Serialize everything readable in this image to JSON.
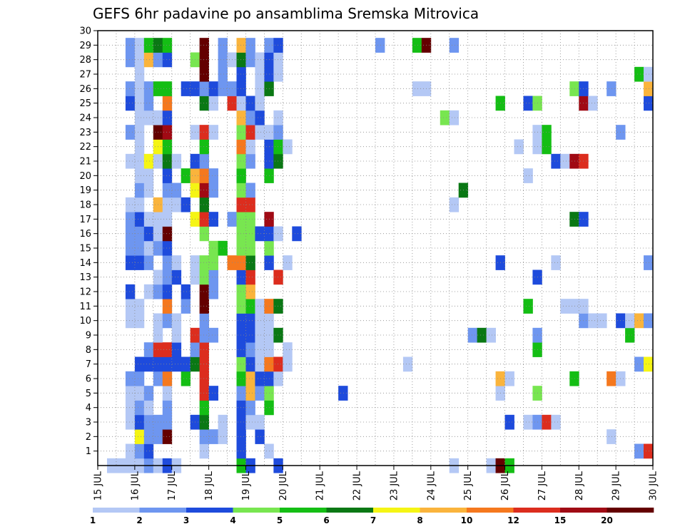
{
  "chart_data": {
    "type": "heatmap",
    "title": "GEFS 6hr padavine po ansamblima Sremska Mitrovica",
    "xlabel": "",
    "ylabel": "",
    "x_tick_labels": [
      "15 JUL",
      "16 JUL",
      "17 JUL",
      "18 JUL",
      "19 JUL",
      "20 JUL",
      "21 JUL",
      "22 JUL",
      "23 JUL",
      "24 JUL",
      "25 JUL",
      "26 JUL",
      "27 JUL",
      "28 JUL",
      "29 JUL",
      "30 JUL"
    ],
    "y_tick_labels": [
      "1",
      "2",
      "3",
      "4",
      "5",
      "6",
      "7",
      "8",
      "9",
      "10",
      "11",
      "12",
      "13",
      "14",
      "15",
      "16",
      "17",
      "18",
      "19",
      "20",
      "21",
      "22",
      "23",
      "24",
      "25",
      "26",
      "27",
      "28",
      "29",
      "30"
    ],
    "x_range_days": [
      0,
      60
    ],
    "steps_per_day": 4,
    "y_range": [
      0,
      30
    ],
    "grid": true,
    "legend": "bottom",
    "colorbar": {
      "colors": [
        "#b4c8f5",
        "#6e96f0",
        "#1e4bdc",
        "#78e650",
        "#14be14",
        "#0a7814",
        "#f5f514",
        "#fab43c",
        "#f5781e",
        "#dc2d1e",
        "#a00a14",
        "#640000"
      ],
      "labels": [
        "1",
        "2",
        "3",
        "4",
        "5",
        "6",
        "7",
        "8",
        "10",
        "12",
        "15",
        "20"
      ]
    },
    "level_key": [
      "1",
      "2",
      "3",
      "4",
      "5",
      "6",
      "7",
      "8",
      "10",
      "12",
      "15",
      "20"
    ],
    "columns": [
      {
        "x": 2,
        "cells": {
          "0": 1
        }
      },
      {
        "x": 3,
        "cells": {
          "0": 1
        }
      },
      {
        "x": 4,
        "cells": {
          "0": 1,
          "1": 1,
          "3": 1,
          "4": 1,
          "5": 1,
          "6": 2,
          "10": 1,
          "11": 1,
          "12": 3,
          "14": 3,
          "15": 2,
          "16": 2,
          "17": 2,
          "18": 1,
          "21": 1,
          "23": 2,
          "25": 3,
          "26": 2,
          "28": 2,
          "29": 2
        }
      },
      {
        "x": 5,
        "cells": {
          "0": 1,
          "1": 2,
          "2": 7,
          "3": 3,
          "4": 2,
          "5": 1,
          "6": 2,
          "7": 3,
          "10": 1,
          "11": 1,
          "14": 3,
          "15": 2,
          "16": 2,
          "17": 3,
          "18": 1,
          "19": 2,
          "20": 1,
          "21": 1,
          "22": 1,
          "23": 1,
          "24": 1,
          "25": 1,
          "26": 1,
          "27": 1,
          "28": 1,
          "29": 1
        }
      },
      {
        "x": 6,
        "cells": {
          "0": 2,
          "1": 3,
          "2": 2,
          "3": 2,
          "4": 1,
          "5": 2,
          "7": 3,
          "8": 2,
          "12": 1,
          "14": 2,
          "15": 1,
          "16": 3,
          "17": 1,
          "19": 1,
          "20": 1,
          "21": 7,
          "24": 1,
          "25": 2,
          "26": 2,
          "28": 8,
          "29": 5
        }
      },
      {
        "x": 7,
        "cells": {
          "0": 1,
          "2": 2,
          "3": 2,
          "6": 2,
          "7": 3,
          "8": 10,
          "9": 1,
          "10": 1,
          "12": 2,
          "13": 1,
          "15": 2,
          "16": 1,
          "17": 1,
          "18": 8,
          "21": 1,
          "22": 7,
          "23": 12,
          "24": 1,
          "26": 5,
          "28": 2,
          "29": 6
        }
      },
      {
        "x": 8,
        "cells": {
          "0": 3,
          "2": 12,
          "3": 2,
          "4": 2,
          "5": 1,
          "6": 9,
          "7": 3,
          "8": 10,
          "10": 2,
          "11": 9,
          "12": 3,
          "13": 2,
          "14": 2,
          "15": 3,
          "16": 12,
          "17": 1,
          "18": 1,
          "19": 2,
          "20": 3,
          "21": 6,
          "22": 5,
          "23": 11,
          "24": 3,
          "25": 9,
          "26": 5,
          "28": 3,
          "29": 5
        }
      },
      {
        "x": 9,
        "cells": {
          "0": 1,
          "7": 3,
          "8": 3,
          "9": 1,
          "10": 1,
          "13": 3,
          "14": 1,
          "18": 1,
          "19": 2,
          "21": 1
        }
      },
      {
        "x": 10,
        "cells": {
          "6": 5,
          "7": 3,
          "11": 2,
          "12": 3,
          "18": 3,
          "20": 5,
          "26": 3
        }
      },
      {
        "x": 11,
        "cells": {
          "3": 3,
          "7": 6,
          "8": 2,
          "9": 10,
          "13": 1,
          "14": 1,
          "17": 7,
          "19": 7,
          "20": 8,
          "21": 3,
          "23": 1,
          "26": 3,
          "28": 4
        }
      },
      {
        "x": 12,
        "cells": {
          "1": 1,
          "2": 2,
          "3": 6,
          "4": 5,
          "5": 10,
          "6": 10,
          "7": 10,
          "8": 10,
          "9": 2,
          "10": 2,
          "11": 12,
          "12": 12,
          "13": 4,
          "14": 4,
          "16": 4,
          "17": 10,
          "18": 6,
          "19": 11,
          "20": 9,
          "21": 2,
          "22": 5,
          "23": 10,
          "25": 6,
          "26": 2,
          "27": 12,
          "28": 12,
          "29": 12
        }
      },
      {
        "x": 13,
        "cells": {
          "2": 2,
          "5": 3,
          "9": 2,
          "12": 2,
          "13": 2,
          "14": 4,
          "15": 4,
          "17": 3,
          "19": 2,
          "20": 2,
          "23": 1,
          "25": 1,
          "26": 3
        }
      },
      {
        "x": 14,
        "cells": {
          "2": 1,
          "3": 1,
          "15": 5,
          "26": 2,
          "27": 2,
          "28": 2,
          "29": 2
        }
      },
      {
        "x": 15,
        "cells": {
          "14": 9,
          "17": 2,
          "25": 10,
          "26": 2,
          "28": 1
        }
      },
      {
        "x": 16,
        "cells": {
          "0": 5,
          "1": 3,
          "2": 3,
          "3": 3,
          "4": 3,
          "5": 2,
          "6": 5,
          "7": 4,
          "8": 3,
          "9": 3,
          "10": 3,
          "11": 4,
          "12": 4,
          "13": 3,
          "14": 9,
          "15": 4,
          "16": 4,
          "17": 4,
          "18": 10,
          "19": 4,
          "20": 5,
          "21": 4,
          "22": 9,
          "23": 4,
          "24": 8,
          "25": 1,
          "26": 3,
          "27": 3,
          "28": 6,
          "29": 8
        }
      },
      {
        "x": 17,
        "cells": {
          "0": 3,
          "3": 1,
          "4": 2,
          "5": 8,
          "6": 8,
          "7": 3,
          "8": 2,
          "9": 3,
          "10": 3,
          "11": 5,
          "12": 8,
          "13": 10,
          "14": 6,
          "15": 4,
          "16": 4,
          "17": 4,
          "18": 10,
          "19": 2,
          "21": 2,
          "22": 1,
          "23": 10,
          "24": 2,
          "25": 3,
          "28": 2,
          "29": 2
        }
      },
      {
        "x": 18,
        "cells": {
          "2": 3,
          "3": 1,
          "5": 2,
          "6": 3,
          "7": 1,
          "8": 1,
          "9": 1,
          "10": 1,
          "11": 1,
          "16": 3,
          "23": 1,
          "24": 3,
          "25": 1,
          "26": 1,
          "27": 1,
          "28": 1
        }
      },
      {
        "x": 19,
        "cells": {
          "1": 1,
          "4": 5,
          "5": 4,
          "6": 3,
          "7": 9,
          "8": 1,
          "9": 1,
          "10": 1,
          "11": 9,
          "14": 3,
          "15": 4,
          "16": 3,
          "17": 11,
          "20": 5,
          "21": 3,
          "22": 3,
          "23": 1,
          "26": 6,
          "27": 3,
          "28": 3,
          "29": 2
        }
      },
      {
        "x": 20,
        "cells": {
          "0": 3,
          "6": 1,
          "7": 10,
          "9": 6,
          "11": 6,
          "13": 10,
          "16": 1,
          "21": 6,
          "22": 5,
          "23": 2,
          "24": 1,
          "27": 1,
          "28": 1,
          "29": 3
        }
      },
      {
        "x": 21,
        "cells": {
          "7": 1,
          "8": 1,
          "14": 1,
          "22": 1
        }
      },
      {
        "x": 22,
        "cells": {
          "16": 3
        }
      },
      {
        "x": 27,
        "cells": {
          "5": 3
        }
      },
      {
        "x": 31,
        "cells": {
          "29": 2
        }
      },
      {
        "x": 34,
        "cells": {
          "7": 1
        }
      },
      {
        "x": 35,
        "cells": {
          "26": 1,
          "29": 5
        }
      },
      {
        "x": 36,
        "cells": {
          "26": 1,
          "29": 12
        }
      },
      {
        "x": 38,
        "cells": {
          "24": 4
        }
      },
      {
        "x": 39,
        "cells": {
          "0": 1,
          "18": 1,
          "24": 1,
          "29": 2
        }
      },
      {
        "x": 40,
        "cells": {
          "19": 6
        }
      },
      {
        "x": 41,
        "cells": {
          "9": 2
        }
      },
      {
        "x": 42,
        "cells": {
          "9": 6
        }
      },
      {
        "x": 43,
        "cells": {
          "0": 1,
          "9": 1
        }
      },
      {
        "x": 44,
        "cells": {
          "0": 12,
          "5": 1,
          "6": 8,
          "14": 3,
          "25": 5
        }
      },
      {
        "x": 45,
        "cells": {
          "0": 5,
          "3": 3,
          "6": 1
        }
      },
      {
        "x": 46,
        "cells": {
          "22": 1
        }
      },
      {
        "x": 47,
        "cells": {
          "3": 1,
          "11": 5,
          "20": 1,
          "25": 3
        }
      },
      {
        "x": 48,
        "cells": {
          "3": 2,
          "5": 4,
          "8": 5,
          "9": 2,
          "13": 3,
          "22": 1,
          "23": 1,
          "25": 4
        }
      },
      {
        "x": 49,
        "cells": {
          "3": 10,
          "22": 5,
          "23": 5
        }
      },
      {
        "x": 50,
        "cells": {
          "3": 1,
          "14": 1,
          "21": 3
        }
      },
      {
        "x": 51,
        "cells": {
          "11": 1,
          "21": 1
        }
      },
      {
        "x": 52,
        "cells": {
          "6": 5,
          "11": 1,
          "17": 6,
          "21": 11,
          "26": 4
        }
      },
      {
        "x": 53,
        "cells": {
          "10": 2,
          "11": 1,
          "17": 3,
          "21": 10,
          "25": 11,
          "26": 3
        }
      },
      {
        "x": 54,
        "cells": {
          "10": 1,
          "25": 1
        }
      },
      {
        "x": 55,
        "cells": {
          "10": 1
        }
      },
      {
        "x": 56,
        "cells": {
          "2": 1,
          "6": 9,
          "26": 2
        }
      },
      {
        "x": 57,
        "cells": {
          "6": 1,
          "10": 3,
          "23": 2
        }
      },
      {
        "x": 58,
        "cells": {
          "9": 5,
          "10": 1
        }
      },
      {
        "x": 59,
        "cells": {
          "1": 2,
          "7": 2,
          "10": 8,
          "27": 5
        }
      },
      {
        "x": 60,
        "cells": {
          "1": 10,
          "7": 7,
          "10": 2,
          "14": 2,
          "25": 3,
          "26": 8,
          "27": 1
        }
      }
    ]
  }
}
